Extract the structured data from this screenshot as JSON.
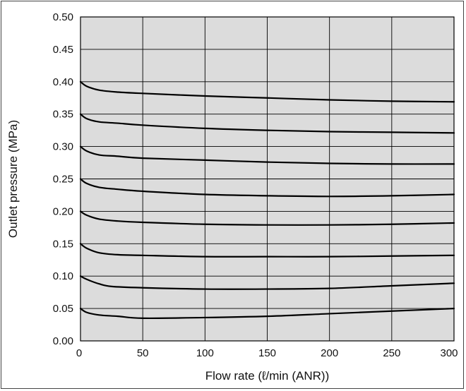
{
  "chart_data": {
    "type": "line",
    "xlabel": "Flow rate (ℓ/min (ANR))",
    "ylabel": "Outlet pressure  (MPa)",
    "xlim": [
      0,
      300
    ],
    "ylim": [
      0,
      0.5
    ],
    "x_ticks": [
      "0",
      "50",
      "100",
      "150",
      "200",
      "250",
      "300"
    ],
    "y_ticks": [
      "0.00",
      "0.05",
      "0.10",
      "0.15",
      "0.20",
      "0.25",
      "0.30",
      "0.35",
      "0.40",
      "0.45",
      "0.50"
    ],
    "grid": true,
    "plot_background": "#dcdcdc",
    "line_color": "#000000",
    "series": [
      {
        "points": [
          [
            0,
            0.05
          ],
          [
            5,
            0.044
          ],
          [
            15,
            0.04
          ],
          [
            30,
            0.038
          ],
          [
            50,
            0.035
          ],
          [
            100,
            0.036
          ],
          [
            150,
            0.038
          ],
          [
            200,
            0.042
          ],
          [
            250,
            0.046
          ],
          [
            305,
            0.05
          ]
        ]
      },
      {
        "points": [
          [
            0,
            0.1
          ],
          [
            5,
            0.095
          ],
          [
            15,
            0.088
          ],
          [
            25,
            0.084
          ],
          [
            50,
            0.082
          ],
          [
            100,
            0.08
          ],
          [
            150,
            0.08
          ],
          [
            200,
            0.081
          ],
          [
            250,
            0.085
          ],
          [
            305,
            0.089
          ]
        ]
      },
      {
        "points": [
          [
            0,
            0.15
          ],
          [
            5,
            0.143
          ],
          [
            15,
            0.136
          ],
          [
            30,
            0.133
          ],
          [
            50,
            0.132
          ],
          [
            100,
            0.13
          ],
          [
            150,
            0.13
          ],
          [
            200,
            0.13
          ],
          [
            250,
            0.131
          ],
          [
            305,
            0.132
          ]
        ]
      },
      {
        "points": [
          [
            0,
            0.2
          ],
          [
            5,
            0.194
          ],
          [
            15,
            0.188
          ],
          [
            30,
            0.185
          ],
          [
            50,
            0.183
          ],
          [
            100,
            0.18
          ],
          [
            150,
            0.179
          ],
          [
            200,
            0.179
          ],
          [
            250,
            0.18
          ],
          [
            305,
            0.182
          ]
        ]
      },
      {
        "points": [
          [
            0,
            0.25
          ],
          [
            5,
            0.243
          ],
          [
            15,
            0.237
          ],
          [
            30,
            0.234
          ],
          [
            50,
            0.231
          ],
          [
            100,
            0.226
          ],
          [
            150,
            0.224
          ],
          [
            200,
            0.223
          ],
          [
            250,
            0.224
          ],
          [
            305,
            0.226
          ]
        ]
      },
      {
        "points": [
          [
            0,
            0.3
          ],
          [
            5,
            0.293
          ],
          [
            15,
            0.287
          ],
          [
            30,
            0.285
          ],
          [
            50,
            0.282
          ],
          [
            100,
            0.279
          ],
          [
            150,
            0.276
          ],
          [
            200,
            0.274
          ],
          [
            250,
            0.273
          ],
          [
            305,
            0.273
          ]
        ]
      },
      {
        "points": [
          [
            0,
            0.35
          ],
          [
            5,
            0.343
          ],
          [
            15,
            0.338
          ],
          [
            30,
            0.336
          ],
          [
            50,
            0.333
          ],
          [
            100,
            0.328
          ],
          [
            150,
            0.325
          ],
          [
            200,
            0.323
          ],
          [
            250,
            0.322
          ],
          [
            305,
            0.321
          ]
        ]
      },
      {
        "points": [
          [
            0,
            0.4
          ],
          [
            5,
            0.393
          ],
          [
            15,
            0.387
          ],
          [
            30,
            0.384
          ],
          [
            50,
            0.382
          ],
          [
            100,
            0.378
          ],
          [
            150,
            0.375
          ],
          [
            200,
            0.372
          ],
          [
            250,
            0.37
          ],
          [
            305,
            0.369
          ]
        ]
      }
    ]
  }
}
